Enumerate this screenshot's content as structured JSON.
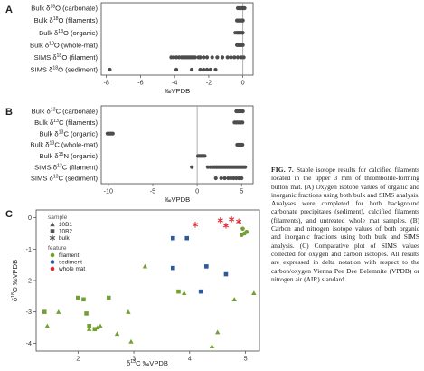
{
  "caption": {
    "label": "FIG. 7.",
    "text": "Stable isotope results for calcified filaments located in the upper 3 mm of thrombolite-forming button mat. (A) Oxygen isotope values of organic and inorganic fractions using both bulk and SIMS analysis. Analyses were completed for both background carbonate precipitates (sediment), calcified filaments (filaments), and untreated whole mat samples. (B) Carbon and nitrogen isotope values of both organic and inorganic fractions using both bulk and SIMS analysis. (C) Comparative plot of SIMS values collected for oxygen and carbon isotopes. All results are expressed in delta notation with respect to the carbon/oxygen Vienna Pee Dee Belemnite (VPDB) or nitrogen air (AIR) standard."
  },
  "colors": {
    "dot": "#4d4d4d",
    "filament": "#73a034",
    "sediment": "#2e5a9a",
    "whole_mat": "#e02935",
    "legend_gray": "#555555"
  },
  "chart_data": [
    {
      "panel": "A",
      "type": "scatter",
      "xlabel": "‰VPDB",
      "xlim": [
        -8.3,
        0.6
      ],
      "xticks": [
        -8,
        -6,
        -4,
        -2,
        0
      ],
      "xtick_labels": [
        "-8",
        "-6",
        "-4",
        "-2",
        "0"
      ],
      "rows": [
        {
          "label": "Bulk δ18O (carbonate)",
          "values": [
            -0.3,
            -0.25,
            -0.2,
            -0.15,
            -0.1,
            -0.05,
            0.0,
            0.05,
            0.1
          ]
        },
        {
          "label": "Bulk δ18O (filaments)",
          "values": [
            -0.35,
            -0.3,
            -0.25,
            -0.2,
            -0.15,
            -0.1,
            -0.05,
            0.0
          ]
        },
        {
          "label": "Bulk δ18O (organic)",
          "values": [
            -0.45,
            -0.35,
            -0.3,
            -0.25,
            -0.2,
            -0.1,
            -0.05,
            0.0
          ]
        },
        {
          "label": "Bulk δ18O (whole-mat)",
          "values": [
            -0.35,
            -0.3,
            -0.25,
            -0.2,
            -0.15,
            -0.1,
            -0.05,
            0.0
          ]
        },
        {
          "label": "SIMS δ18O (filament)",
          "values": [
            -4.2,
            -4.05,
            -3.9,
            -3.75,
            -3.6,
            -3.5,
            -3.4,
            -3.3,
            -3.2,
            -3.1,
            -3.0,
            -2.9,
            -2.8,
            -2.6,
            -2.5,
            -2.3,
            -2.1,
            -1.8,
            -1.5,
            -1.2,
            -0.9,
            -0.7,
            -0.5,
            -0.3,
            -0.1,
            0.05
          ]
        },
        {
          "label": "SIMS δ18O (sediment)",
          "values": [
            -7.8,
            -3.9,
            -3.0,
            -2.5,
            -2.3,
            -2.1,
            -1.9,
            -1.6
          ]
        }
      ]
    },
    {
      "panel": "B",
      "type": "scatter",
      "xlabel": "‰VPDB",
      "xlim": [
        -10.8,
        6.3
      ],
      "xticks": [
        -10,
        -5,
        0,
        5
      ],
      "xtick_labels": [
        "-10",
        "-5",
        "0",
        "5"
      ],
      "rows": [
        {
          "label": "Bulk δ13C (carbonate)",
          "values": [
            4.4,
            4.55,
            4.7,
            4.85,
            5.0,
            5.15
          ]
        },
        {
          "label": "Bulk δ13C (filaments)",
          "values": [
            4.2,
            4.35,
            4.5,
            4.65,
            4.8,
            4.95,
            5.1
          ]
        },
        {
          "label": "Bulk δ13C (organic)",
          "values": [
            -10.1,
            -9.95,
            -9.8,
            -9.65,
            -9.5
          ]
        },
        {
          "label": "Bulk δ13C (whole-mat)",
          "values": [
            4.5,
            4.65,
            4.8,
            4.95,
            5.1
          ]
        },
        {
          "label": "Bulk δ15N (organic)",
          "values": [
            0.1,
            0.25,
            0.4,
            0.55,
            0.7,
            0.85
          ]
        },
        {
          "label": "SIMS δ13C (filament)",
          "values": [
            -0.6,
            1.2,
            1.5,
            1.8,
            2.0,
            2.2,
            2.4,
            2.6,
            2.8,
            3.0,
            3.2,
            3.4,
            3.6,
            3.8,
            4.0,
            4.2,
            4.4,
            4.6,
            4.8,
            5.0,
            5.2,
            5.4
          ]
        },
        {
          "label": "SIMS δ13C (sediment)",
          "values": [
            2.1,
            2.7,
            3.1,
            3.5,
            3.8,
            4.1,
            4.4,
            4.7,
            5.0
          ]
        }
      ]
    },
    {
      "panel": "C",
      "type": "scatter",
      "xlabel": "δ13C ‰VPDB",
      "ylabel": "δ18O ‰VPDB",
      "xlim": [
        1.25,
        5.25
      ],
      "ylim": [
        -4.25,
        0.25
      ],
      "xticks": [
        2,
        3,
        4,
        5
      ],
      "xtick_labels": [
        "2",
        "3",
        "4",
        "5"
      ],
      "yticks": [
        0,
        -1,
        -2,
        -3,
        -4
      ],
      "ytick_labels": [
        "0",
        "-1",
        "-2",
        "-3",
        "-4"
      ],
      "legend": {
        "placement": "top-left",
        "sample_title": "sample",
        "sample_items": [
          {
            "name": "10B1",
            "marker": "triangle"
          },
          {
            "name": "10B2",
            "marker": "square"
          },
          {
            "name": "bulk",
            "marker": "asterisk"
          }
        ],
        "feature_title": "feature",
        "feature_items": [
          {
            "name": "filament",
            "color_key": "filament"
          },
          {
            "name": "sediment",
            "color_key": "sediment"
          },
          {
            "name": "whole mat",
            "color_key": "whole_mat"
          }
        ]
      },
      "points": [
        {
          "x": 4.95,
          "y": -0.35,
          "marker": "circle",
          "feature": "filament"
        },
        {
          "x": 4.98,
          "y": -0.5,
          "marker": "circle",
          "feature": "filament"
        },
        {
          "x": 5.02,
          "y": -0.45,
          "marker": "circle",
          "feature": "filament"
        },
        {
          "x": 4.93,
          "y": -0.55,
          "marker": "circle",
          "feature": "filament"
        },
        {
          "x": 4.1,
          "y": -0.22,
          "marker": "asterisk",
          "feature": "whole_mat"
        },
        {
          "x": 4.55,
          "y": -0.08,
          "marker": "asterisk",
          "feature": "whole_mat"
        },
        {
          "x": 4.75,
          "y": -0.05,
          "marker": "asterisk",
          "feature": "whole_mat"
        },
        {
          "x": 4.88,
          "y": -0.12,
          "marker": "asterisk",
          "feature": "whole_mat"
        },
        {
          "x": 4.65,
          "y": -0.25,
          "marker": "asterisk",
          "feature": "whole_mat"
        },
        {
          "x": 3.7,
          "y": -0.65,
          "marker": "square",
          "feature": "sediment"
        },
        {
          "x": 3.95,
          "y": -0.65,
          "marker": "square",
          "feature": "sediment"
        },
        {
          "x": 3.7,
          "y": -1.6,
          "marker": "square",
          "feature": "sediment"
        },
        {
          "x": 4.3,
          "y": -1.55,
          "marker": "square",
          "feature": "sediment"
        },
        {
          "x": 4.65,
          "y": -1.8,
          "marker": "square",
          "feature": "sediment"
        },
        {
          "x": 4.2,
          "y": -2.35,
          "marker": "square",
          "feature": "sediment"
        },
        {
          "x": 2.0,
          "y": -2.55,
          "marker": "square",
          "feature": "filament"
        },
        {
          "x": 2.1,
          "y": -2.6,
          "marker": "square",
          "feature": "filament"
        },
        {
          "x": 2.55,
          "y": -2.55,
          "marker": "square",
          "feature": "filament"
        },
        {
          "x": 2.15,
          "y": -3.05,
          "marker": "square",
          "feature": "filament"
        },
        {
          "x": 2.2,
          "y": -3.45,
          "marker": "square",
          "feature": "filament"
        },
        {
          "x": 2.3,
          "y": -3.55,
          "marker": "square",
          "feature": "filament"
        },
        {
          "x": 1.4,
          "y": -3.0,
          "marker": "square",
          "feature": "filament"
        },
        {
          "x": 3.8,
          "y": -2.35,
          "marker": "square",
          "feature": "filament"
        },
        {
          "x": 1.45,
          "y": -3.45,
          "marker": "triangle",
          "feature": "filament"
        },
        {
          "x": 1.65,
          "y": -3.0,
          "marker": "triangle",
          "feature": "filament"
        },
        {
          "x": 2.2,
          "y": -3.55,
          "marker": "triangle",
          "feature": "filament"
        },
        {
          "x": 2.35,
          "y": -3.5,
          "marker": "triangle",
          "feature": "filament"
        },
        {
          "x": 2.4,
          "y": -3.45,
          "marker": "triangle",
          "feature": "filament"
        },
        {
          "x": 2.7,
          "y": -3.7,
          "marker": "triangle",
          "feature": "filament"
        },
        {
          "x": 2.9,
          "y": -3.0,
          "marker": "triangle",
          "feature": "filament"
        },
        {
          "x": 2.95,
          "y": -3.95,
          "marker": "triangle",
          "feature": "filament"
        },
        {
          "x": 3.2,
          "y": -1.55,
          "marker": "triangle",
          "feature": "filament"
        },
        {
          "x": 3.9,
          "y": -2.4,
          "marker": "triangle",
          "feature": "filament"
        },
        {
          "x": 4.5,
          "y": -3.65,
          "marker": "triangle",
          "feature": "filament"
        },
        {
          "x": 4.4,
          "y": -4.1,
          "marker": "triangle",
          "feature": "filament"
        },
        {
          "x": 4.8,
          "y": -2.6,
          "marker": "triangle",
          "feature": "filament"
        },
        {
          "x": 5.15,
          "y": -2.4,
          "marker": "triangle",
          "feature": "filament"
        }
      ]
    }
  ]
}
